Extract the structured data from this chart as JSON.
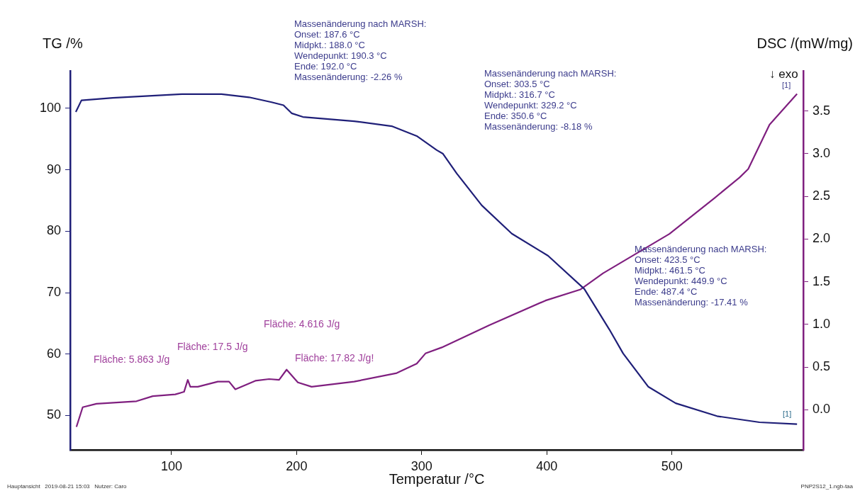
{
  "chart_data": {
    "type": "line",
    "xlabel": "Temperatur /°C",
    "ylabel": "TG /%",
    "y2label": "DSC /(mW/mg)",
    "xlim": [
      19,
      605
    ],
    "xticks": [
      100,
      200,
      300,
      400,
      500
    ],
    "ylim": [
      44.4,
      106.1
    ],
    "yticks": [
      50,
      60,
      70,
      80,
      90,
      100
    ],
    "y2lim": [
      -0.47,
      3.97
    ],
    "y2ticks": [
      {
        "value": 0,
        "label": "0.0"
      },
      {
        "value": 0.5,
        "label": "0.5"
      },
      {
        "value": 1,
        "label": "1.0"
      },
      {
        "value": 1.5,
        "label": "1.5"
      },
      {
        "value": 2,
        "label": "2.0"
      },
      {
        "value": 2.5,
        "label": "2.5"
      },
      {
        "value": 3,
        "label": "3.0"
      },
      {
        "value": 3.5,
        "label": "3.5"
      }
    ],
    "series": [
      {
        "color": "#1f1f78",
        "x": [
          23.5,
          28,
          53,
          108,
          140,
          162,
          180,
          189.5,
          196,
          205,
          246,
          276,
          296,
          312,
          317,
          328,
          348,
          372,
          401,
          430,
          450,
          461,
          481,
          503,
          536,
          570,
          600
        ],
        "values": [
          99.4,
          101.3,
          101.7,
          102.3,
          102.3,
          101.8,
          101.0,
          100.5,
          99.2,
          98.6,
          97.9,
          97.1,
          95.5,
          93.2,
          92.6,
          89.4,
          84.2,
          79.6,
          76.0,
          70.6,
          64.0,
          60.1,
          54.7,
          52.0,
          49.9,
          48.9,
          48.6
        ]
      },
      {
        "color": "#7f1f7f",
        "axis": "y2",
        "x": [
          24,
          29,
          40,
          72,
          85,
          103,
          110,
          113,
          115,
          121,
          137,
          146,
          151,
          167,
          178,
          186,
          192,
          201,
          212,
          246,
          280,
          296,
          303,
          316,
          354,
          399,
          427,
          445,
          498,
          534,
          554,
          561,
          578,
          600
        ],
        "values": [
          -0.2,
          0.03,
          0.07,
          0.1,
          0.16,
          0.18,
          0.21,
          0.35,
          0.27,
          0.27,
          0.33,
          0.33,
          0.24,
          0.34,
          0.36,
          0.35,
          0.47,
          0.32,
          0.27,
          0.33,
          0.43,
          0.54,
          0.66,
          0.73,
          0.99,
          1.28,
          1.41,
          1.6,
          2.06,
          2.48,
          2.72,
          2.82,
          3.34,
          3.7
        ]
      }
    ],
    "annotations": [
      "Massenänderung nach MARSH:",
      "Onset: 187.6 °C",
      "Midpkt.: 188.0 °C",
      "Wendepunkt: 190.3 °C",
      "Ende: 192.0 °C",
      "Massenänderung: -2.26 %",
      "Massenänderung nach MARSH:",
      "Onset: 303.5 °C",
      "Midpkt.: 316.7 °C",
      "Wendepunkt: 329.2 °C",
      "Ende: 350.6 °C",
      "Massenänderung: -8.18 %",
      "Massenänderung nach MARSH:",
      "Onset: 423.5 °C",
      "Midpkt.: 461.5 °C",
      "Wendepunkt: 449.9 °C",
      "Ende: 487.4 °C",
      "Massenänderung: -17.41 %",
      "Fläche: 5.863 J/g",
      "Fläche: 17.5 J/g",
      "Fläche: 4.616 J/g",
      "Fläche: 17.82 J/g!",
      "↓ exo",
      "[1]",
      "[1]",
      "Hauptansicht   2019-08-21 15:03   Nutzer: Caro",
      "PNP2S12_1.ngb-taa"
    ]
  }
}
